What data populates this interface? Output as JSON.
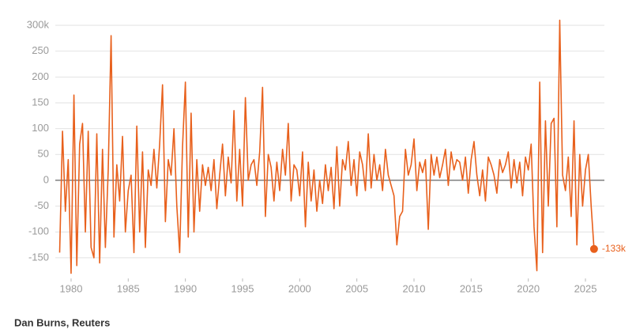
{
  "chart_data": {
    "type": "line",
    "source": "Dan Burns, Reuters",
    "annotation": "-133k",
    "x": [
      1979,
      1979.25,
      1979.5,
      1979.75,
      1980,
      1980.25,
      1980.5,
      1980.75,
      1981,
      1981.25,
      1981.5,
      1981.75,
      1982,
      1982.25,
      1982.5,
      1982.75,
      1983,
      1983.25,
      1983.5,
      1983.75,
      1984,
      1984.25,
      1984.5,
      1984.75,
      1985,
      1985.25,
      1985.5,
      1985.75,
      1986,
      1986.25,
      1986.5,
      1986.75,
      1987,
      1987.25,
      1987.5,
      1987.75,
      1988,
      1988.25,
      1988.5,
      1988.75,
      1989,
      1989.25,
      1989.5,
      1989.75,
      1990,
      1990.25,
      1990.5,
      1990.75,
      1991,
      1991.25,
      1991.5,
      1991.75,
      1992,
      1992.25,
      1992.5,
      1992.75,
      1993,
      1993.25,
      1993.5,
      1993.75,
      1994,
      1994.25,
      1994.5,
      1994.75,
      1995,
      1995.25,
      1995.5,
      1995.75,
      1996,
      1996.25,
      1996.5,
      1996.75,
      1997,
      1997.25,
      1997.5,
      1997.75,
      1998,
      1998.25,
      1998.5,
      1998.75,
      1999,
      1999.25,
      1999.5,
      1999.75,
      2000,
      2000.25,
      2000.5,
      2000.75,
      2001,
      2001.25,
      2001.5,
      2001.75,
      2002,
      2002.25,
      2002.5,
      2002.75,
      2003,
      2003.25,
      2003.5,
      2003.75,
      2004,
      2004.25,
      2004.5,
      2004.75,
      2005,
      2005.25,
      2005.5,
      2005.75,
      2006,
      2006.25,
      2006.5,
      2006.75,
      2007,
      2007.25,
      2007.5,
      2007.75,
      2008,
      2008.25,
      2008.5,
      2008.75,
      2009,
      2009.25,
      2009.5,
      2009.75,
      2010,
      2010.25,
      2010.5,
      2010.75,
      2011,
      2011.25,
      2011.5,
      2011.75,
      2012,
      2012.25,
      2012.5,
      2012.75,
      2013,
      2013.25,
      2013.5,
      2013.75,
      2014,
      2014.25,
      2014.5,
      2014.75,
      2015,
      2015.25,
      2015.5,
      2015.75,
      2016,
      2016.25,
      2016.5,
      2016.75,
      2017,
      2017.25,
      2017.5,
      2017.75,
      2018,
      2018.25,
      2018.5,
      2018.75,
      2019,
      2019.25,
      2019.5,
      2019.75,
      2020,
      2020.25,
      2020.5,
      2020.75,
      2021,
      2021.25,
      2021.5,
      2021.75,
      2022,
      2022.25,
      2022.5,
      2022.75,
      2023,
      2023.25,
      2023.5,
      2023.75,
      2024,
      2024.25,
      2024.5,
      2024.75,
      2025,
      2025.25,
      2025.5,
      2025.75
    ],
    "series": [
      {
        "color": "#e8601c",
        "values": [
          -140,
          95,
          -60,
          40,
          -180,
          165,
          -165,
          70,
          110,
          -100,
          95,
          -130,
          -150,
          90,
          -160,
          60,
          -130,
          20,
          280,
          -110,
          30,
          -40,
          85,
          -100,
          -20,
          10,
          -140,
          105,
          -100,
          55,
          -130,
          20,
          -10,
          60,
          -15,
          70,
          185,
          -80,
          40,
          10,
          100,
          -50,
          -140,
          65,
          190,
          -110,
          130,
          -100,
          40,
          -60,
          30,
          -10,
          25,
          -20,
          40,
          -55,
          10,
          70,
          -30,
          45,
          -5,
          135,
          -40,
          60,
          -50,
          160,
          0,
          30,
          40,
          -10,
          55,
          180,
          -70,
          50,
          25,
          -40,
          35,
          -20,
          60,
          10,
          110,
          -40,
          30,
          20,
          -30,
          55,
          -90,
          35,
          -40,
          20,
          -60,
          0,
          -45,
          30,
          -20,
          25,
          -55,
          65,
          -50,
          40,
          20,
          75,
          -10,
          40,
          -30,
          55,
          30,
          -20,
          90,
          -15,
          50,
          0,
          30,
          -20,
          60,
          10,
          -10,
          -30,
          -125,
          -70,
          -60,
          60,
          10,
          30,
          80,
          -20,
          35,
          15,
          40,
          -95,
          50,
          10,
          45,
          5,
          30,
          60,
          -10,
          55,
          20,
          40,
          35,
          0,
          45,
          -25,
          40,
          75,
          10,
          -30,
          20,
          -40,
          45,
          30,
          10,
          -25,
          40,
          15,
          30,
          55,
          -15,
          40,
          -5,
          35,
          -30,
          45,
          20,
          70,
          -90,
          -175,
          190,
          -140,
          115,
          -50,
          110,
          120,
          -90,
          310,
          10,
          -20,
          45,
          -70,
          115,
          -125,
          50,
          -50,
          20,
          50,
          -50,
          -133
        ]
      }
    ],
    "xlim": [
      1979,
      2025.8
    ],
    "xticks": [
      1980,
      1985,
      1990,
      1995,
      2000,
      2005,
      2010,
      2015,
      2020,
      2025
    ],
    "ylim": [
      -190,
      310
    ],
    "yticks": [
      -150,
      -100,
      -50,
      0,
      50,
      100,
      150,
      200,
      250,
      {
        "value": 300,
        "label": "300k"
      }
    ],
    "grid": true
  }
}
